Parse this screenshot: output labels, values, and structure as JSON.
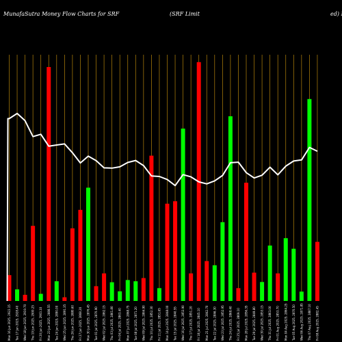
{
  "header": {
    "title": "MunafaSutra  Money Flow  Charts for SRF",
    "company": "(SRF Limit",
    "company_tail": "ed) M"
  },
  "colors": {
    "background": "#000000",
    "buy": "#00ff00",
    "sell": "#ff0000",
    "line": "#ffffff",
    "grid": "#b8860b"
  },
  "chart_data": {
    "type": "bar",
    "title": "MunafaSutra  Money Flow  Charts for SRF",
    "x": [
      "Mon 16 Jun 2025, 2922.15",
      "Tue 17 Jun 2025, 2928.40",
      "Wed 18 Jun 2025, 2919.70",
      "Thu 19 Jun 2025, 2900.25",
      "Fri 20 Jun 2025, 2903.10",
      "Mon 23 Jun 2025, 2888.55",
      "Tue 24 Jun 2025, 2890.00",
      "Wed 25 Jun 2025, 2891.35",
      "Thu 26 Jun 2025, 2880.60",
      "Fri 27 Jun 2025, 2868.20",
      "Mon 30 Jun 2025, 2876.45",
      "Tue 01 Jul 2025, 2870.90",
      "Wed 02 Jul 2025, 2862.15",
      "Thu 03 Jul 2025, 2861.80",
      "Fri 04 Jul 2025, 2863.40",
      "Mon 07 Jul 2025, 2868.75",
      "Tue 08 Jul 2025, 2871.20",
      "Wed 09 Jul 2025, 2864.90",
      "Thu 10 Jul 2025, 2852.30",
      "Fri 11 Jul 2025, 2851.65",
      "Mon 14 Jul 2025, 2848.00",
      "Tue 15 Jul 2025, 2840.55",
      "Wed 16 Jul 2025, 2853.90",
      "Thu 17 Jul 2025, 2851.20",
      "Fri 18 Jul 2025, 2845.10",
      "Mon 21 Jul 2025, 2842.70",
      "Tue 22 Jul 2025, 2846.30",
      "Wed 23 Jul 2025, 2852.95",
      "Thu 24 Jul 2025, 2868.40",
      "Fri 25 Jul 2025, 2869.10",
      "Mon 28 Jul 2025, 2856.35",
      "Tue 29 Jul 2025, 2849.80",
      "Wed 30 Jul 2025, 2853.15",
      "Thu 31 Jul 2025, 2863.00",
      "Fri 01 Aug 2025, 2853.70",
      "Mon 04 Aug 2025, 2864.25",
      "Tue 05 Aug 2025, 2870.50",
      "Wed 06 Aug 2025, 2871.85",
      "Thu 07 Aug 2025, 2887.10",
      "Fri 08 Aug 2025, 2882.45"
    ],
    "values": [
      10.5,
      4.7,
      2.5,
      30.5,
      2.9,
      95.0,
      8.0,
      1.5,
      29.5,
      37.0,
      46.0,
      6.0,
      11.2,
      7.6,
      3.9,
      8.5,
      8.0,
      9.3,
      59.0,
      5.2,
      39.5,
      40.5,
      70.0,
      11.2,
      97.0,
      16.2,
      14.5,
      32.0,
      75.0,
      5.2,
      48.0,
      11.5,
      7.7,
      22.5,
      11.2,
      25.5,
      21.2,
      3.8,
      82.0,
      24.0
    ],
    "direction": [
      "sell",
      "buy",
      "sell",
      "sell",
      "buy",
      "sell",
      "buy",
      "sell",
      "sell",
      "sell",
      "buy",
      "sell",
      "sell",
      "buy",
      "buy",
      "buy",
      "buy",
      "sell",
      "sell",
      "buy",
      "sell",
      "sell",
      "buy",
      "sell",
      "sell",
      "sell",
      "buy",
      "buy",
      "buy",
      "sell",
      "sell",
      "sell",
      "buy",
      "buy",
      "sell",
      "buy",
      "buy",
      "buy",
      "buy",
      "sell"
    ],
    "price": [
      2922.15,
      2928.4,
      2919.7,
      2900.25,
      2903.1,
      2888.55,
      2890.0,
      2891.35,
      2880.6,
      2868.2,
      2876.45,
      2870.9,
      2862.15,
      2861.8,
      2863.4,
      2868.75,
      2871.2,
      2864.9,
      2852.3,
      2851.65,
      2848.0,
      2840.55,
      2853.9,
      2851.2,
      2845.1,
      2842.7,
      2846.3,
      2852.95,
      2868.4,
      2869.1,
      2856.35,
      2849.8,
      2853.15,
      2863.0,
      2853.7,
      2864.25,
      2870.5,
      2871.85,
      2887.1,
      2882.45
    ],
    "price_range": [
      2700,
      3000
    ],
    "ylim": [
      0,
      100
    ],
    "grid": true
  }
}
